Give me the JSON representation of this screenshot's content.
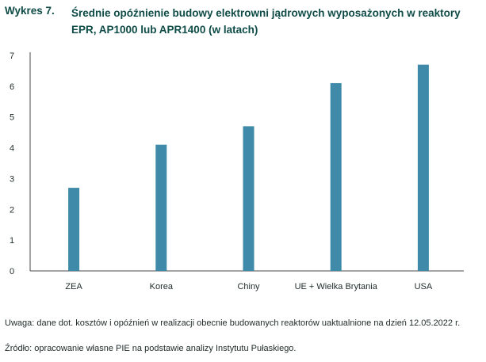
{
  "title": {
    "prefix": "Wykres 7.",
    "text": "Średnie opóźnienie budowy elektrowni jądrowych wyposażonych w reaktory EPR, AP1000 lub APR1400 (w latach)"
  },
  "notes": {
    "uwaga": "Uwaga: dane dot. kosztów i opóźnień w realizacji obecnie budowanych reaktorów uaktualnione na dzień 12.05.2022 r.",
    "zrodlo": "Źródło: opracowanie własne PIE na podstawie analizy Instytutu Pułaskiego."
  },
  "chart_data": {
    "type": "bar",
    "categories": [
      "ZEA",
      "Korea",
      "Chiny",
      "UE + Wielka Brytania",
      "USA"
    ],
    "values": [
      2.7,
      4.1,
      4.7,
      6.1,
      6.7
    ],
    "yticks": [
      "0",
      "1",
      "2",
      "3",
      "4",
      "5",
      "6",
      "7"
    ],
    "ylim": [
      0,
      7
    ],
    "grid": false,
    "bar_color": "#3e8aa8",
    "axis_color": "#4a4a4a"
  }
}
